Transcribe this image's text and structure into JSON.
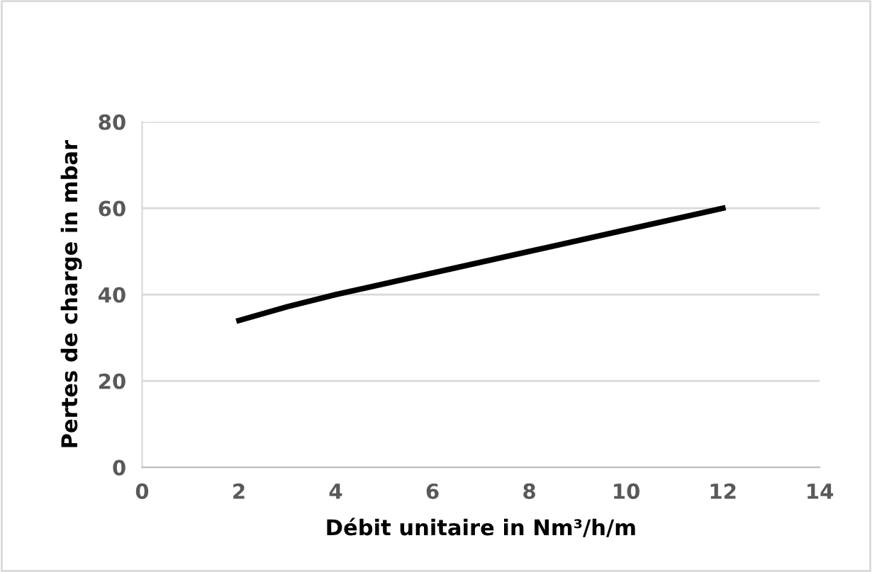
{
  "chart_data": {
    "type": "line",
    "xlabel": "Débit unitaire in Nm³/h/m",
    "ylabel": "Pertes de charge in mbar",
    "x": [
      2,
      3,
      4,
      6,
      8,
      10,
      12
    ],
    "series": [
      {
        "color": "#000000",
        "values": [
          34,
          37.2,
          40,
          45,
          50,
          55,
          60
        ]
      }
    ],
    "xlim": [
      0,
      14
    ],
    "xticks": [
      0,
      2,
      4,
      6,
      8,
      10,
      12,
      14
    ],
    "ylim": [
      0,
      80
    ],
    "yticks": [
      0,
      20,
      40,
      60,
      80
    ],
    "grid": "y",
    "legend": false,
    "marker": "none",
    "line_style": "solid"
  }
}
